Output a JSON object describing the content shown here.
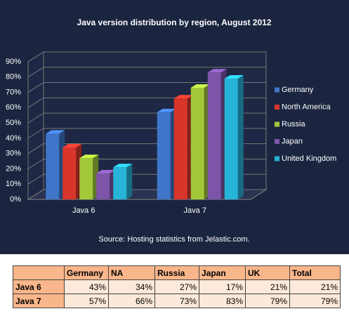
{
  "chart_data": {
    "type": "bar3d",
    "title": "Java version distribution by region, August 2012",
    "categories": [
      "Java 6",
      "Java 7"
    ],
    "series": [
      {
        "name": "Germany",
        "color": "#3f76c9",
        "values": [
          43,
          57
        ]
      },
      {
        "name": "North America",
        "color": "#d8352b",
        "values": [
          34,
          66
        ]
      },
      {
        "name": "Russia",
        "color": "#a3c83a",
        "values": [
          27,
          73
        ]
      },
      {
        "name": "Japan",
        "color": "#7d55a8",
        "values": [
          17,
          83
        ]
      },
      {
        "name": "United Kingdom",
        "color": "#27b4d9",
        "values": [
          21,
          79
        ]
      }
    ],
    "ylim": [
      0,
      90
    ],
    "yticks": [
      {
        "value": 0,
        "label": "0%"
      },
      {
        "value": 10,
        "label": "10%"
      },
      {
        "value": 20,
        "label": "20%"
      },
      {
        "value": 30,
        "label": "30%"
      },
      {
        "value": 40,
        "label": "40%"
      },
      {
        "value": 50,
        "label": "50%"
      },
      {
        "value": 60,
        "label": "60%"
      },
      {
        "value": 70,
        "label": "70%"
      },
      {
        "value": 80,
        "label": "80%"
      },
      {
        "value": 90,
        "label": "90%"
      }
    ],
    "grid": true,
    "legend": "right",
    "source": "Source: Hosting statistics from Jelastic.com."
  },
  "table": {
    "header": [
      "Germany",
      "NA",
      "Russia",
      "Japan",
      "UK",
      "Total"
    ],
    "rows": [
      [
        "Java 6",
        "43%",
        "34%",
        "27%",
        "17%",
        "21%",
        "21%"
      ],
      [
        "Java 7",
        "57%",
        "66%",
        "73%",
        "83%",
        "79%",
        "79%"
      ]
    ]
  }
}
